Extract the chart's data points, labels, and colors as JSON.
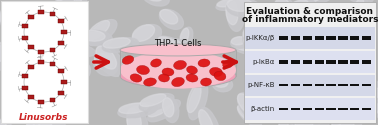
{
  "left_panel": {
    "label": "Linusorbs",
    "bg_color": "#ffffff",
    "border_color": "#dddddd",
    "label_color": "#cc2222",
    "label_fontsize": 6.5
  },
  "middle": {
    "dish_fill_top": "#f8c0cc",
    "dish_fill_bottom": "#f0a0b8",
    "dish_edge": "#aaaaaa",
    "cell_color": "#dd1111",
    "label": "THP-1 Cells",
    "label_fontsize": 6,
    "label_color": "#111111"
  },
  "arrows": {
    "color": "#cc1111",
    "linewidth": 2.5
  },
  "right_panel": {
    "bg_color": "#f0f0f0",
    "border_color": "#aaaaaa",
    "title_line1": "Evaluation & comparison",
    "title_line2": "of inflammatory mediators",
    "title_fontsize": 6.5,
    "title_color": "#111111",
    "bands": [
      "p-IKKα/β",
      "p-IκBα",
      "p-NF-κB",
      "β-actin"
    ],
    "band_label_fontsize": 5,
    "band_label_color": "#222222",
    "band_color": "#111111",
    "band_thicknesses": [
      4.0,
      4.0,
      2.0,
      2.0
    ],
    "row_bg_colors": [
      "#dde0ee",
      "#e8eaf5",
      "#dde0ee",
      "#e8eaf5"
    ],
    "n_lanes": 8
  },
  "bg_seed": 42,
  "fig_width": 3.78,
  "fig_height": 1.25,
  "dpi": 100
}
